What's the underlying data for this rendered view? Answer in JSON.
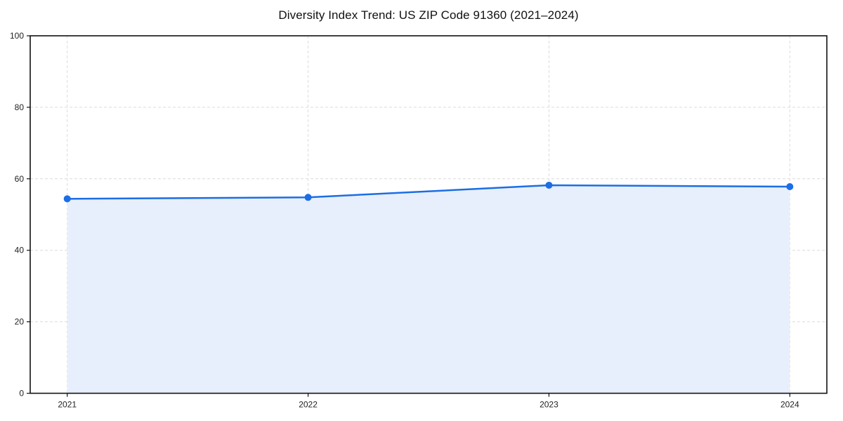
{
  "chart_data": {
    "type": "area",
    "title": "Diversity Index Trend: US ZIP Code 91360 (2021–2024)",
    "x": [
      "2021",
      "2022",
      "2023",
      "2024"
    ],
    "series": [
      {
        "name": "Diversity Index",
        "values": [
          54.4,
          54.8,
          58.2,
          57.8
        ]
      }
    ],
    "xlabel": "",
    "ylabel": "",
    "ylim": [
      0,
      100
    ],
    "yticks": [
      0,
      20,
      40,
      60,
      80,
      100
    ],
    "grid": true,
    "grid_style": "dashed",
    "legend_position": "none",
    "marker": "circle",
    "colors": {
      "line": "#1b6ee5",
      "marker": "#1b6ee5",
      "area_fill": "#e8effc",
      "grid": "#dcdcdc",
      "spine": "#111111",
      "tick_label": "#222222",
      "title": "#111111",
      "background": "#ffffff"
    }
  }
}
